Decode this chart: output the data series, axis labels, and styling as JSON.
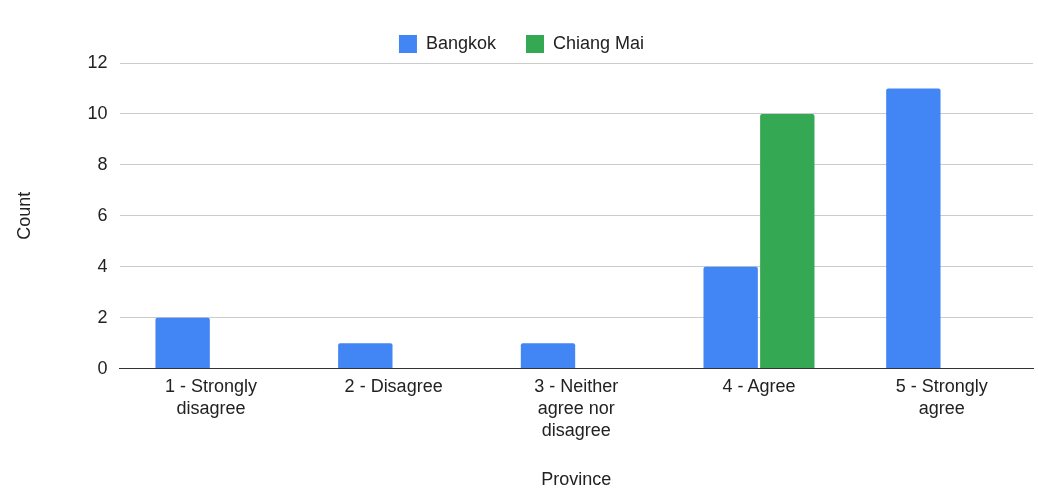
{
  "chart_data": {
    "type": "bar",
    "xlabel": "Province",
    "ylabel": "Count",
    "categories": [
      "1 - Strongly disagree",
      "2 - Disagree",
      "3 - Neither agree nor disagree",
      "4 - Agree",
      "5 - Strongly agree"
    ],
    "series": [
      {
        "name": "Bangkok",
        "color": "#4285f4",
        "values": [
          2,
          1,
          1,
          4,
          11
        ]
      },
      {
        "name": "Chiang Mai",
        "color": "#34a853",
        "values": [
          0,
          0,
          0,
          10,
          0
        ]
      }
    ],
    "ylim": [
      0,
      12
    ],
    "yticks": [
      0,
      2,
      4,
      6,
      8,
      10,
      12
    ],
    "grid": "y",
    "legend": "top"
  }
}
